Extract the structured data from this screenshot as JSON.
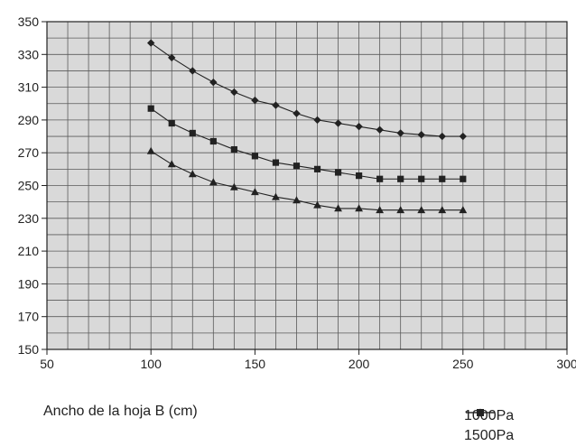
{
  "chart_data": {
    "type": "line",
    "title": "",
    "xlabel": "Ancho de la hoja B (cm)",
    "ylabel": "",
    "xlim": [
      50,
      300
    ],
    "ylim": [
      150,
      350
    ],
    "grid": true,
    "x_major_ticks": [
      50,
      100,
      150,
      200,
      250,
      300
    ],
    "y_major_ticks": [
      150,
      170,
      190,
      210,
      230,
      250,
      270,
      290,
      310,
      330,
      350
    ],
    "x_minor_step": 10,
    "y_minor_step": 10,
    "legend_position": "bottom-right",
    "x": [
      100,
      110,
      120,
      130,
      140,
      150,
      160,
      170,
      180,
      190,
      200,
      210,
      220,
      230,
      240,
      250
    ],
    "series": [
      {
        "name": "1000Pa",
        "marker": "diamond",
        "values": [
          337,
          328,
          320,
          313,
          307,
          302,
          299,
          294,
          290,
          288,
          286,
          284,
          282,
          281,
          280,
          280
        ]
      },
      {
        "name": "1500Pa",
        "marker": "square",
        "values": [
          297,
          288,
          282,
          277,
          272,
          268,
          264,
          262,
          260,
          258,
          256,
          254,
          254,
          254,
          254,
          254
        ]
      },
      {
        "name": "",
        "marker": "triangle",
        "values": [
          271,
          263,
          257,
          252,
          249,
          246,
          243,
          241,
          238,
          236,
          236,
          235,
          235,
          235,
          235,
          235
        ]
      }
    ],
    "colors": {
      "plot_bg": "#d9d9d9",
      "grid": "#5a5a5a",
      "line": "#222222",
      "marker": "#222222"
    }
  }
}
